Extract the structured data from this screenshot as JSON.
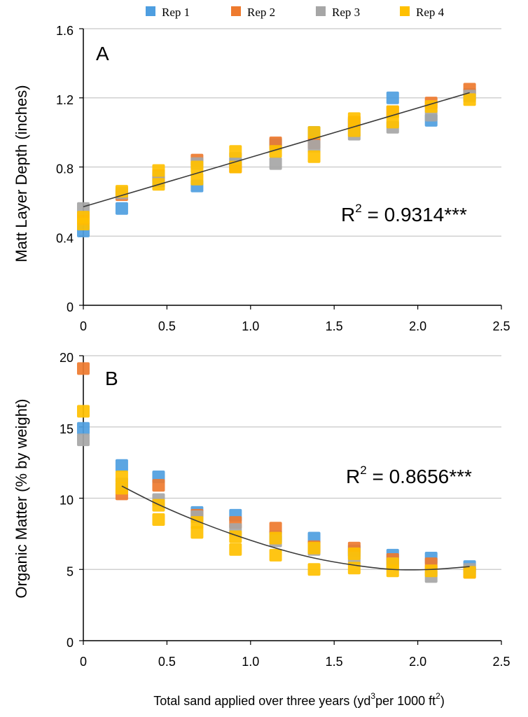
{
  "colors": {
    "rep1": "#4e9ee0",
    "rep2": "#ee7a2e",
    "rep3": "#a6a6a6",
    "rep4": "#ffc000",
    "grid": "#c8c8c8",
    "axis": "#000000",
    "trend": "#3b3b3b"
  },
  "legend": {
    "items": [
      {
        "label": "Rep 1",
        "color_key": "rep1"
      },
      {
        "label": "Rep 2",
        "color_key": "rep2"
      },
      {
        "label": "Rep 3",
        "color_key": "rep3"
      },
      {
        "label": "Rep 4",
        "color_key": "rep4"
      }
    ],
    "placement": "top-center"
  },
  "x_axis": {
    "label_pre": "Total sand applied over three years (yd",
    "label_sup1": "3",
    "label_mid": "per 1000 ft",
    "label_sup2": "2",
    "label_post": ")"
  },
  "chart_data": [
    {
      "type": "scatter",
      "panel_label": "A",
      "ylabel": "Matt Layer Depth (inches)",
      "xlabel": "Total sand applied over three years (yd3 per 1000 ft2)",
      "xlim": [
        0,
        2.5
      ],
      "ylim": [
        0,
        1.6
      ],
      "xticks": [
        "0",
        "0.5",
        "1.0",
        "1.5",
        "2.0",
        "2.5"
      ],
      "yticks": [
        "0",
        "0.4",
        "0.8",
        "1.2",
        "1.6"
      ],
      "grid": true,
      "r2_base": "R",
      "r2_sup": "2",
      "r2_rest": " = 0.9314***",
      "trendline": {
        "type": "linear",
        "x": [
          0,
          2.31
        ],
        "y": [
          0.57,
          1.23
        ]
      },
      "series": [
        {
          "name": "Rep 1",
          "color_key": "rep1",
          "x": [
            0,
            0.23,
            0.45,
            0.68,
            0.91,
            1.15,
            1.38,
            1.62,
            1.85,
            2.08,
            2.31
          ],
          "y": [
            0.43,
            0.56,
            0.72,
            0.69,
            0.82,
            0.93,
            1.0,
            1.05,
            1.2,
            1.07,
            1.22
          ]
        },
        {
          "name": "Rep 2",
          "color_key": "rep2",
          "x": [
            0,
            0.23,
            0.45,
            0.68,
            0.91,
            1.15,
            1.38,
            1.62,
            1.85,
            2.08,
            2.31
          ],
          "y": [
            0.5,
            0.64,
            0.75,
            0.84,
            0.8,
            0.94,
            0.94,
            1.06,
            1.12,
            1.17,
            1.25
          ]
        },
        {
          "name": "Rep 3",
          "color_key": "rep3",
          "x": [
            0,
            0.23,
            0.45,
            0.68,
            0.91,
            1.15,
            1.38,
            1.62,
            1.85,
            2.08,
            2.31
          ],
          "y": [
            0.56,
            0.65,
            0.74,
            0.82,
            0.85,
            0.82,
            0.92,
            0.99,
            1.03,
            1.1,
            1.21
          ]
        },
        {
          "name": "Rep 4",
          "color_key": "rep4",
          "x": [
            0,
            0,
            0.23,
            0.45,
            0.45,
            0.68,
            0.68,
            0.91,
            0.91,
            1.15,
            1.38,
            1.38,
            1.62,
            1.62,
            1.85,
            1.85,
            2.08,
            2.31
          ],
          "y": [
            0.47,
            0.51,
            0.66,
            0.7,
            0.78,
            0.73,
            0.8,
            0.8,
            0.89,
            0.89,
            0.86,
            1.0,
            1.01,
            1.08,
            1.06,
            1.12,
            1.15,
            1.19
          ]
        }
      ]
    },
    {
      "type": "scatter",
      "panel_label": "B",
      "ylabel": "Organic Matter (% by weight)",
      "xlabel": "Total sand applied over three years (yd3 per 1000 ft2)",
      "xlim": [
        0,
        2.5
      ],
      "ylim": [
        0,
        20
      ],
      "xticks": [
        "0",
        "0.5",
        "1.0",
        "1.5",
        "2.0",
        "2.5"
      ],
      "yticks": [
        "0",
        "5",
        "10",
        "15",
        "20"
      ],
      "grid": true,
      "r2_base": "R",
      "r2_sup": "2",
      "r2_rest": " = 0.8656***",
      "trendline": {
        "type": "polynomial",
        "x": [
          0.23,
          0.45,
          0.68,
          0.91,
          1.15,
          1.38,
          1.62,
          1.85,
          2.08,
          2.31
        ],
        "y": [
          10.85,
          9.55,
          8.4,
          7.4,
          6.5,
          5.8,
          5.3,
          5.0,
          5.0,
          5.2
        ]
      },
      "series": [
        {
          "name": "Rep 1",
          "color_key": "rep1",
          "x": [
            0,
            0.23,
            0.45,
            0.68,
            0.91,
            1.15,
            1.38,
            1.62,
            1.85,
            2.08,
            2.31
          ],
          "y": [
            14.9,
            12.3,
            11.5,
            9.0,
            8.8,
            7.3,
            7.2,
            6.3,
            6.0,
            5.8,
            5.2
          ]
        },
        {
          "name": "Rep 2",
          "color_key": "rep2",
          "x": [
            0,
            0.23,
            0.45,
            0.68,
            0.91,
            1.15,
            1.38,
            1.62,
            1.85,
            2.08,
            2.31
          ],
          "y": [
            19.1,
            10.3,
            10.9,
            8.8,
            8.3,
            7.9,
            6.6,
            6.5,
            5.7,
            5.4,
            4.8
          ]
        },
        {
          "name": "Rep 3",
          "color_key": "rep3",
          "x": [
            0,
            0.23,
            0.45,
            0.68,
            0.91,
            1.15,
            1.38,
            1.62,
            1.85,
            2.08,
            2.31
          ],
          "y": [
            14.1,
            11.0,
            9.9,
            8.7,
            7.8,
            7.0,
            6.4,
            5.8,
            5.4,
            4.5,
            5.0
          ]
        },
        {
          "name": "Rep 4",
          "color_key": "rep4",
          "x": [
            0,
            0.23,
            0.23,
            0.45,
            0.45,
            0.68,
            0.68,
            0.91,
            0.91,
            1.15,
            1.15,
            1.38,
            1.38,
            1.62,
            1.62,
            1.85,
            1.85,
            2.08,
            2.31
          ],
          "y": [
            16.1,
            10.7,
            11.5,
            8.5,
            9.5,
            7.6,
            8.3,
            6.4,
            7.3,
            6.0,
            7.2,
            5.0,
            6.5,
            5.1,
            6.1,
            4.9,
            5.4,
            4.9,
            4.8
          ]
        }
      ]
    }
  ]
}
